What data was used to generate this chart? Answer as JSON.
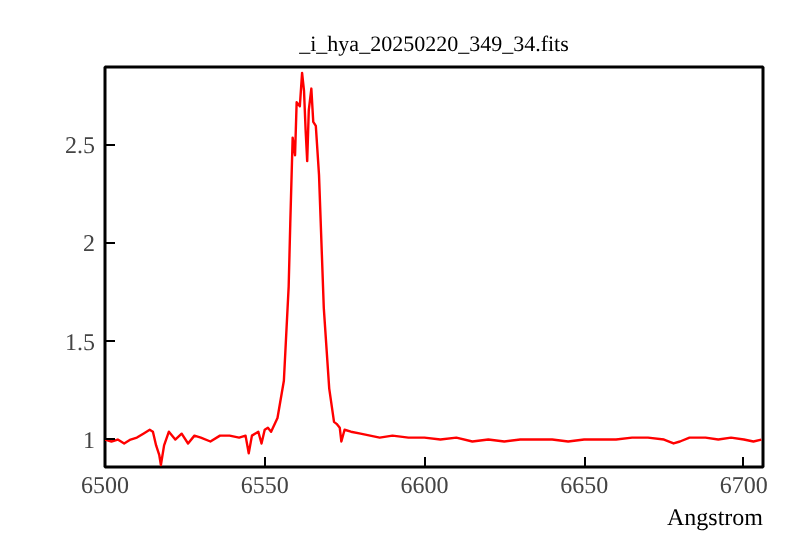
{
  "chart_data": {
    "type": "line",
    "title": "_i_hya_20250220_349_34.fits",
    "xlabel": "Angstrom",
    "x": [
      6500,
      6502,
      6504,
      6506,
      6508,
      6510,
      6512,
      6514,
      6515,
      6516,
      6517,
      6517.5,
      6518.5,
      6520,
      6522,
      6524,
      6526,
      6528,
      6530,
      6533,
      6536,
      6539,
      6542,
      6544,
      6545,
      6546,
      6548,
      6549,
      6550,
      6551,
      6552,
      6554,
      6556,
      6557.5,
      6558,
      6558.75,
      6559.5,
      6560,
      6561,
      6561.7,
      6562.3,
      6562.8,
      6563.3,
      6563.8,
      6564.6,
      6565.2,
      6566,
      6567,
      6568.5,
      6570.2,
      6571.7,
      6572.5,
      6573.5,
      6574,
      6575,
      6577,
      6580,
      6583,
      6586,
      6590,
      6595,
      6600,
      6605,
      6610,
      6615,
      6620,
      6625,
      6630,
      6635,
      6640,
      6645,
      6650,
      6655,
      6660,
      6665,
      6670,
      6675,
      6678,
      6680,
      6683,
      6688,
      6692,
      6696,
      6700,
      6703,
      6705.5
    ],
    "series": [
      {
        "color": "#ff0000",
        "values": [
          1.0,
          0.99,
          1.0,
          0.98,
          1.0,
          1.01,
          1.03,
          1.05,
          1.04,
          0.97,
          0.92,
          0.87,
          0.97,
          1.04,
          1.0,
          1.03,
          0.98,
          1.02,
          1.01,
          0.99,
          1.02,
          1.02,
          1.01,
          1.02,
          0.93,
          1.02,
          1.04,
          0.98,
          1.05,
          1.06,
          1.04,
          1.11,
          1.3,
          1.78,
          2.1,
          2.54,
          2.45,
          2.72,
          2.7,
          2.87,
          2.78,
          2.58,
          2.42,
          2.68,
          2.79,
          2.62,
          2.6,
          2.35,
          1.67,
          1.26,
          1.09,
          1.08,
          1.06,
          0.99,
          1.05,
          1.04,
          1.03,
          1.02,
          1.01,
          1.02,
          1.01,
          1.01,
          1.0,
          1.01,
          0.99,
          1.0,
          0.99,
          1.0,
          1.0,
          1.0,
          0.99,
          1.0,
          1.0,
          1.0,
          1.01,
          1.01,
          1.0,
          0.98,
          0.99,
          1.01,
          1.01,
          1.0,
          1.01,
          1.0,
          0.99,
          1.0
        ]
      }
    ],
    "xlim": [
      6500,
      6706
    ],
    "ylim": [
      0.86,
      2.9
    ],
    "xticks": [
      6500,
      6550,
      6600,
      6650,
      6700
    ],
    "yticks": [
      1,
      1.5,
      2,
      2.5
    ],
    "grid": false,
    "marker": "none",
    "line_style": "solid"
  }
}
